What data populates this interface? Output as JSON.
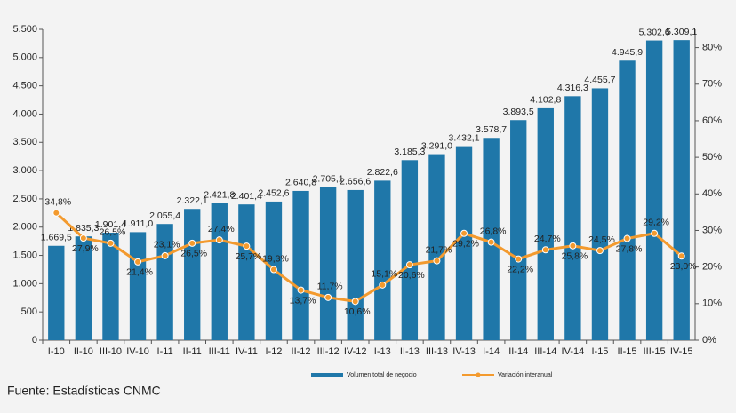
{
  "chart_data": {
    "type": "bar-line",
    "categories": [
      "I-10",
      "II-10",
      "III-10",
      "IV-10",
      "I-11",
      "II-11",
      "III-11",
      "IV-11",
      "I-12",
      "II-12",
      "III-12",
      "IV-12",
      "I-13",
      "II-13",
      "III-13",
      "IV-13",
      "I-14",
      "II-14",
      "III-14",
      "IV-14",
      "I-15",
      "II-15",
      "III-15",
      "IV-15"
    ],
    "series": [
      {
        "name": "Volumen total de negocio",
        "type": "bar",
        "color": "#1f77a9",
        "values": [
          1669.5,
          1835.3,
          1901.4,
          1911.0,
          2055.4,
          2322.1,
          2421.8,
          2401.4,
          2452.6,
          2640.8,
          2705.1,
          2656.6,
          2822.6,
          3185.3,
          3291.0,
          3432.1,
          3578.7,
          3893.5,
          4102.8,
          4316.3,
          4455.7,
          4945.9,
          5302.6,
          5309.1
        ],
        "value_labels": [
          "1.669,5",
          "1.835,3",
          "1.901,4",
          "1.911,0",
          "2.055,4",
          "2.322,1",
          "2.421,8",
          "2.401,4",
          "2.452,6",
          "2.640,8",
          "2.705,1",
          "2.656,6",
          "2.822,6",
          "3.185,3",
          "3.291,0",
          "3.432,1",
          "3.578,7",
          "3.893,5",
          "4.102,8",
          "4.316,3",
          "4.455,7",
          "4.945,9",
          "5.302,6",
          "5.309,1"
        ]
      },
      {
        "name": "Variación interanual",
        "type": "line",
        "axis": "y2",
        "color": "#f39a2e",
        "values": [
          34.8,
          27.9,
          26.5,
          21.4,
          23.1,
          26.5,
          27.4,
          25.7,
          19.3,
          13.7,
          11.7,
          10.6,
          15.1,
          20.6,
          21.7,
          29.2,
          26.8,
          22.2,
          24.7,
          25.8,
          24.5,
          27.8,
          29.2,
          23.0
        ],
        "value_labels": [
          "34,8%",
          "27,9%",
          "26,5%",
          "21,4%",
          "23,1%",
          "26,5%",
          "27,4%",
          "25,7%",
          "19,3%",
          "13,7%",
          "11,7%",
          "10,6%",
          "15,1%",
          "20,6%",
          "21,7%",
          "29,2%",
          "26,8%",
          "22,2%",
          "24,7%",
          "25,8%",
          "24,5%",
          "27,8%",
          "29,2%",
          "23,0%"
        ]
      }
    ],
    "ylim": [
      0,
      5500
    ],
    "yticks": [
      0,
      500,
      {
        "value": 1000,
        "label": "1.000"
      },
      {
        "value": 1500,
        "label": "1.500"
      },
      {
        "value": 2000,
        "label": "2.000"
      },
      {
        "value": 2500,
        "label": "2.500"
      },
      {
        "value": 3000,
        "label": "3.000"
      },
      {
        "value": 3500,
        "label": "3.500"
      },
      {
        "value": 4000,
        "label": "4.000"
      },
      {
        "value": 4500,
        "label": "4.500"
      },
      {
        "value": 5000,
        "label": "5.000"
      },
      {
        "value": 5500,
        "label": "5.500"
      }
    ],
    "y2lim": [
      0,
      85
    ],
    "y2ticks": [
      {
        "value": 0,
        "label": "0%"
      },
      {
        "value": 10,
        "label": "10%"
      },
      {
        "value": 20,
        "label": "20%"
      },
      {
        "value": 30,
        "label": "30%"
      },
      {
        "value": 40,
        "label": "40%"
      },
      {
        "value": 50,
        "label": "50%"
      },
      {
        "value": 60,
        "label": "60%"
      },
      {
        "value": 70,
        "label": "70%"
      },
      {
        "value": 80,
        "label": "80%"
      }
    ],
    "legend": "bottom",
    "source": "Fuente: Estadísticas CNMC"
  }
}
